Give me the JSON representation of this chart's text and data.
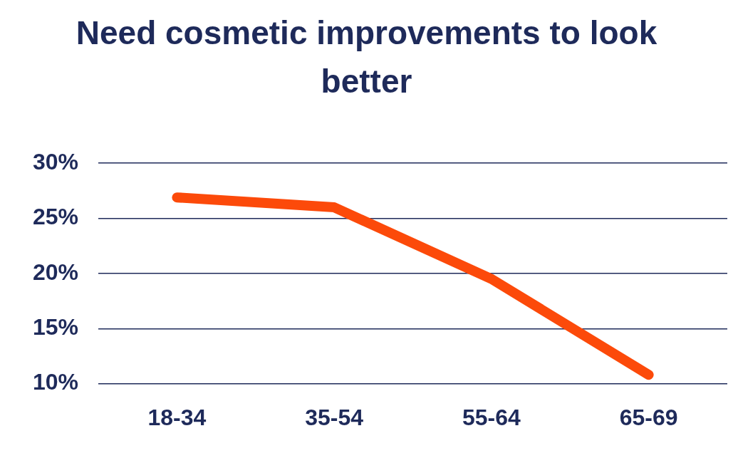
{
  "chart_data": {
    "type": "line",
    "title": "Need cosmetic improvements to look better",
    "categories": [
      "18-34",
      "35-54",
      "55-64",
      "65-69"
    ],
    "series": [
      {
        "color": "#fc4a0a",
        "values": [
          26.9,
          26.0,
          19.5,
          10.8
        ]
      }
    ],
    "ylim": [
      10,
      30
    ],
    "yticks": [
      {
        "value": 10,
        "label": "10%"
      },
      {
        "value": 15,
        "label": "15%"
      },
      {
        "value": 20,
        "label": "20%"
      },
      {
        "value": 25,
        "label": "25%"
      },
      {
        "value": 30,
        "label": "30%"
      }
    ],
    "grid": "y",
    "legend": false,
    "marker": "none",
    "line_style": "solid"
  }
}
